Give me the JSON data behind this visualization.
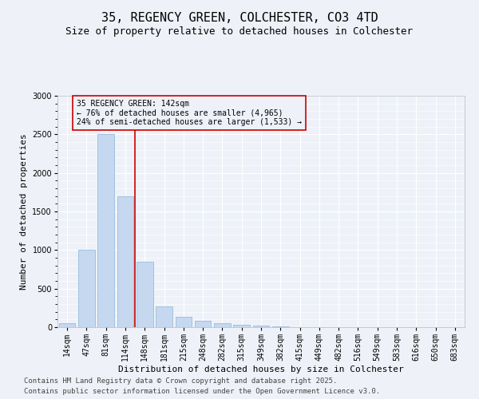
{
  "title": "35, REGENCY GREEN, COLCHESTER, CO3 4TD",
  "subtitle": "Size of property relative to detached houses in Colchester",
  "xlabel": "Distribution of detached houses by size in Colchester",
  "ylabel": "Number of detached properties",
  "categories": [
    "14sqm",
    "47sqm",
    "81sqm",
    "114sqm",
    "148sqm",
    "181sqm",
    "215sqm",
    "248sqm",
    "282sqm",
    "315sqm",
    "349sqm",
    "382sqm",
    "415sqm",
    "449sqm",
    "482sqm",
    "516sqm",
    "549sqm",
    "583sqm",
    "616sqm",
    "650sqm",
    "683sqm"
  ],
  "values": [
    50,
    1000,
    2500,
    1700,
    850,
    270,
    130,
    80,
    50,
    30,
    20,
    8,
    5,
    5,
    5,
    5,
    3,
    3,
    3,
    3,
    3
  ],
  "bar_color": "#c5d8f0",
  "bar_edge_color": "#8ab4d8",
  "red_line_index": 3.5,
  "red_line_color": "#cc0000",
  "ylim": [
    0,
    3000
  ],
  "yticks": [
    0,
    500,
    1000,
    1500,
    2000,
    2500,
    3000
  ],
  "annotation_text": "35 REGENCY GREEN: 142sqm\n← 76% of detached houses are smaller (4,965)\n24% of semi-detached houses are larger (1,533) →",
  "annotation_box_color": "#cc0000",
  "footer_line1": "Contains HM Land Registry data © Crown copyright and database right 2025.",
  "footer_line2": "Contains public sector information licensed under the Open Government Licence v3.0.",
  "bg_color": "#eef2f8",
  "grid_color": "#ffffff",
  "title_fontsize": 11,
  "subtitle_fontsize": 9,
  "xlabel_fontsize": 8,
  "ylabel_fontsize": 8,
  "tick_fontsize": 7,
  "ann_fontsize": 7,
  "footer_fontsize": 6.5
}
